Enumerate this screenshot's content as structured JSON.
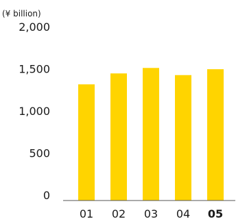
{
  "chart_data": {
    "type": "bar",
    "unit_label": "(¥ billion)",
    "categories": [
      "01",
      "02",
      "03",
      "04",
      "05"
    ],
    "highlight_category": "05",
    "values": [
      1380,
      1510,
      1575,
      1490,
      1560
    ],
    "ylim": [
      0,
      2000
    ],
    "yticks": [
      "2,000",
      "1,500",
      "1,000",
      "500",
      "0"
    ],
    "ytick_values": [
      2000,
      1500,
      1000,
      500,
      0
    ],
    "grid": false,
    "bar_color": "#FFD400",
    "axis_color": "#555555"
  }
}
